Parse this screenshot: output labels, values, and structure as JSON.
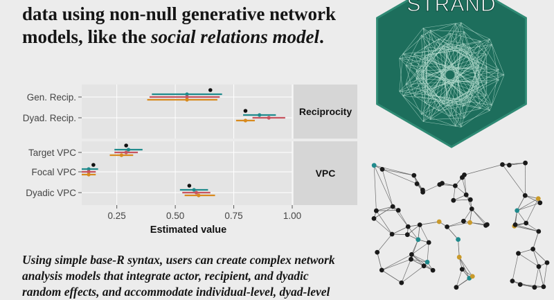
{
  "headline": {
    "line1": "data using non-null generative network",
    "line2_prefix": "models, like the ",
    "line2_em": "social relations model",
    "line2_suffix": "."
  },
  "footer": {
    "line1": "Using simple base-R syntax, users can create complex network",
    "line2": "analysis models that integrate actor, recipient, and dyadic",
    "line3": "random effects, and accommodate individual-level, dyad-level"
  },
  "logo": {
    "text": "STRAND",
    "fill": "#1d6e5c",
    "stroke": "#2f8a74"
  },
  "colors": {
    "teal": "#1f8a8c",
    "red": "#c8545f",
    "orange": "#d88a1e",
    "black": "#111111",
    "panel": "#e4e4e4",
    "strip": "#d6d6d6",
    "net_black": "#1a1a1a",
    "net_teal": "#1f8a8c",
    "net_gold": "#c99a2a"
  },
  "chart_data": {
    "type": "forest",
    "xlabel": "Estimated value",
    "xticks": [
      0.25,
      0.5,
      0.75,
      1.0
    ],
    "xtick_labels": [
      "0.25",
      "0.50",
      "0.75",
      "1.00"
    ],
    "xlim": [
      0.1,
      1.0
    ],
    "panels": [
      {
        "name": "Reciprocity",
        "rows": [
          {
            "label": "Gen. Recip.",
            "black": 0.65,
            "intervals": [
              {
                "color": "teal",
                "lo": 0.4,
                "hi": 0.7,
                "est": 0.55
              },
              {
                "color": "red",
                "lo": 0.39,
                "hi": 0.69,
                "est": 0.55
              },
              {
                "color": "orange",
                "lo": 0.38,
                "hi": 0.68,
                "est": 0.55
              }
            ]
          },
          {
            "label": "Dyad. Recip.",
            "black": 0.8,
            "intervals": [
              {
                "color": "teal",
                "lo": 0.79,
                "hi": 0.93,
                "est": 0.86
              },
              {
                "color": "red",
                "lo": 0.83,
                "hi": 0.97,
                "est": 0.9
              },
              {
                "color": "orange",
                "lo": 0.76,
                "hi": 0.84,
                "est": 0.8
              }
            ]
          }
        ]
      },
      {
        "name": "VPC",
        "rows": [
          {
            "label": "Target VPC",
            "black": 0.29,
            "intervals": [
              {
                "color": "teal",
                "lo": 0.24,
                "hi": 0.36,
                "est": 0.3
              },
              {
                "color": "red",
                "lo": 0.24,
                "hi": 0.34,
                "est": 0.29
              },
              {
                "color": "orange",
                "lo": 0.22,
                "hi": 0.32,
                "est": 0.27
              }
            ]
          },
          {
            "label": "Focal VPC",
            "black": 0.15,
            "intervals": [
              {
                "color": "teal",
                "lo": 0.1,
                "hi": 0.17,
                "est": 0.13
              },
              {
                "color": "red",
                "lo": 0.1,
                "hi": 0.16,
                "est": 0.13
              },
              {
                "color": "orange",
                "lo": 0.1,
                "hi": 0.16,
                "est": 0.13
              }
            ]
          },
          {
            "label": "Dyadic VPC",
            "black": 0.56,
            "intervals": [
              {
                "color": "teal",
                "lo": 0.52,
                "hi": 0.64,
                "est": 0.58
              },
              {
                "color": "red",
                "lo": 0.53,
                "hi": 0.65,
                "est": 0.59
              },
              {
                "color": "orange",
                "lo": 0.54,
                "hi": 0.67,
                "est": 0.6
              }
            ]
          }
        ]
      }
    ]
  }
}
